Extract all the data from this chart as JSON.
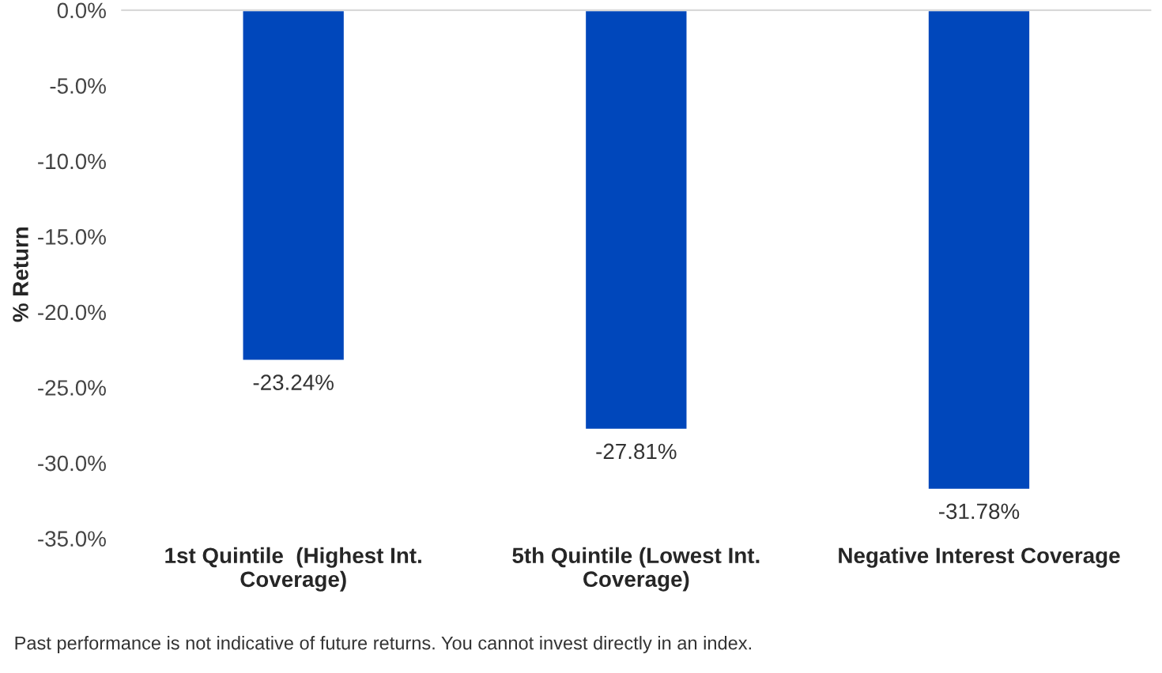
{
  "chart_data": {
    "type": "bar",
    "categories": [
      "1st Quintile  (Highest Int.\nCoverage)",
      "5th Quintile (Lowest Int.\nCoverage)",
      "Negative Interest Coverage"
    ],
    "values": [
      -23.24,
      -27.81,
      -31.78
    ],
    "color": "#0047bb",
    "value_labels": [
      "-23.24%",
      "-27.81%",
      "-31.78%"
    ],
    "ylabel": "% Return",
    "ylim": [
      -35,
      0
    ],
    "yticks": [
      {
        "value": 0,
        "label": "0.0%"
      },
      {
        "value": -5,
        "label": "-5.0%"
      },
      {
        "value": -10,
        "label": "-10.0%"
      },
      {
        "value": -15,
        "label": "-15.0%"
      },
      {
        "value": -20,
        "label": "-20.0%"
      },
      {
        "value": -25,
        "label": "-25.0%"
      },
      {
        "value": -30,
        "label": "-30.0%"
      },
      {
        "value": -35,
        "label": "-35.0%"
      }
    ],
    "grid": false,
    "legend": false,
    "annotations": [
      "Past performance is not indicative of future returns. You cannot invest directly in an index."
    ]
  }
}
